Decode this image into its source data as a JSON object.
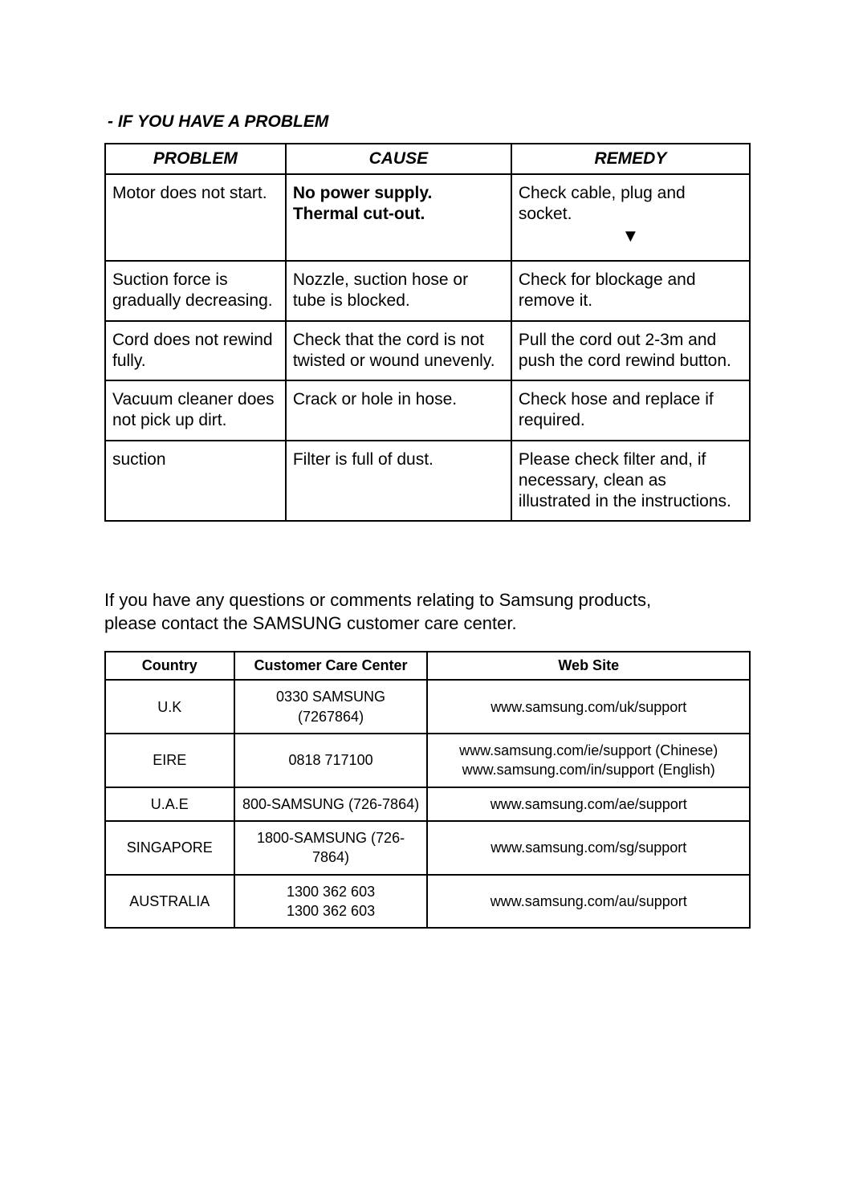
{
  "sectionTitle": "- IF YOU HAVE A PROBLEM",
  "problemsTable": {
    "headers": {
      "problem": "PROBLEM",
      "cause": "CAUSE",
      "remedy": "REMEDY"
    },
    "rows": [
      {
        "problem": "Motor does not start.",
        "cause": "No power supply.\nThermal cut-out.",
        "remedy": "Check cable, plug and socket.",
        "causeBold": true,
        "remedyArrow": true
      },
      {
        "problem": "Suction force is gradually decreasing.",
        "cause": "Nozzle, suction hose or tube is blocked.",
        "remedy": "Check for blockage and remove it."
      },
      {
        "problem": "Cord does not rewind fully.",
        "cause": "Check that the cord is not twisted or wound unevenly.",
        "remedy": "Pull the cord out 2-3m and push the cord rewind button."
      },
      {
        "problem": "Vacuum cleaner does not pick up dirt.",
        "cause": "Crack or hole in hose.",
        "remedy": "Check hose and replace if required."
      },
      {
        "problem": "suction",
        "cause": "Filter is  full of dust.",
        "remedy": "Please check filter and, if necessary, clean as illustrated in the instructions."
      }
    ]
  },
  "contactText": "If you have any questions or comments relating to Samsung products,\nplease contact the SAMSUNG customer care center.",
  "countriesTable": {
    "headers": {
      "country": "Country",
      "center": "Customer Care Center",
      "web": "Web Site"
    },
    "rows": [
      {
        "country": "U.K",
        "center": "0330 SAMSUNG (7267864)",
        "web": "www.samsung.com/uk/support"
      },
      {
        "country": "EIRE",
        "center": "0818 717100",
        "web": "www.samsung.com/ie/support (Chinese)\nwww.samsung.com/in/support (English)"
      },
      {
        "country": "U.A.E",
        "center": "800-SAMSUNG (726-7864)",
        "web": "www.samsung.com/ae/support"
      },
      {
        "country": "SINGAPORE",
        "center": "1800-SAMSUNG (726-7864)",
        "web": "www.samsung.com/sg/support"
      },
      {
        "country": "AUSTRALIA",
        "center": "1300 362 603\n1300 362 603",
        "web": "www.samsung.com/au/support"
      }
    ]
  }
}
